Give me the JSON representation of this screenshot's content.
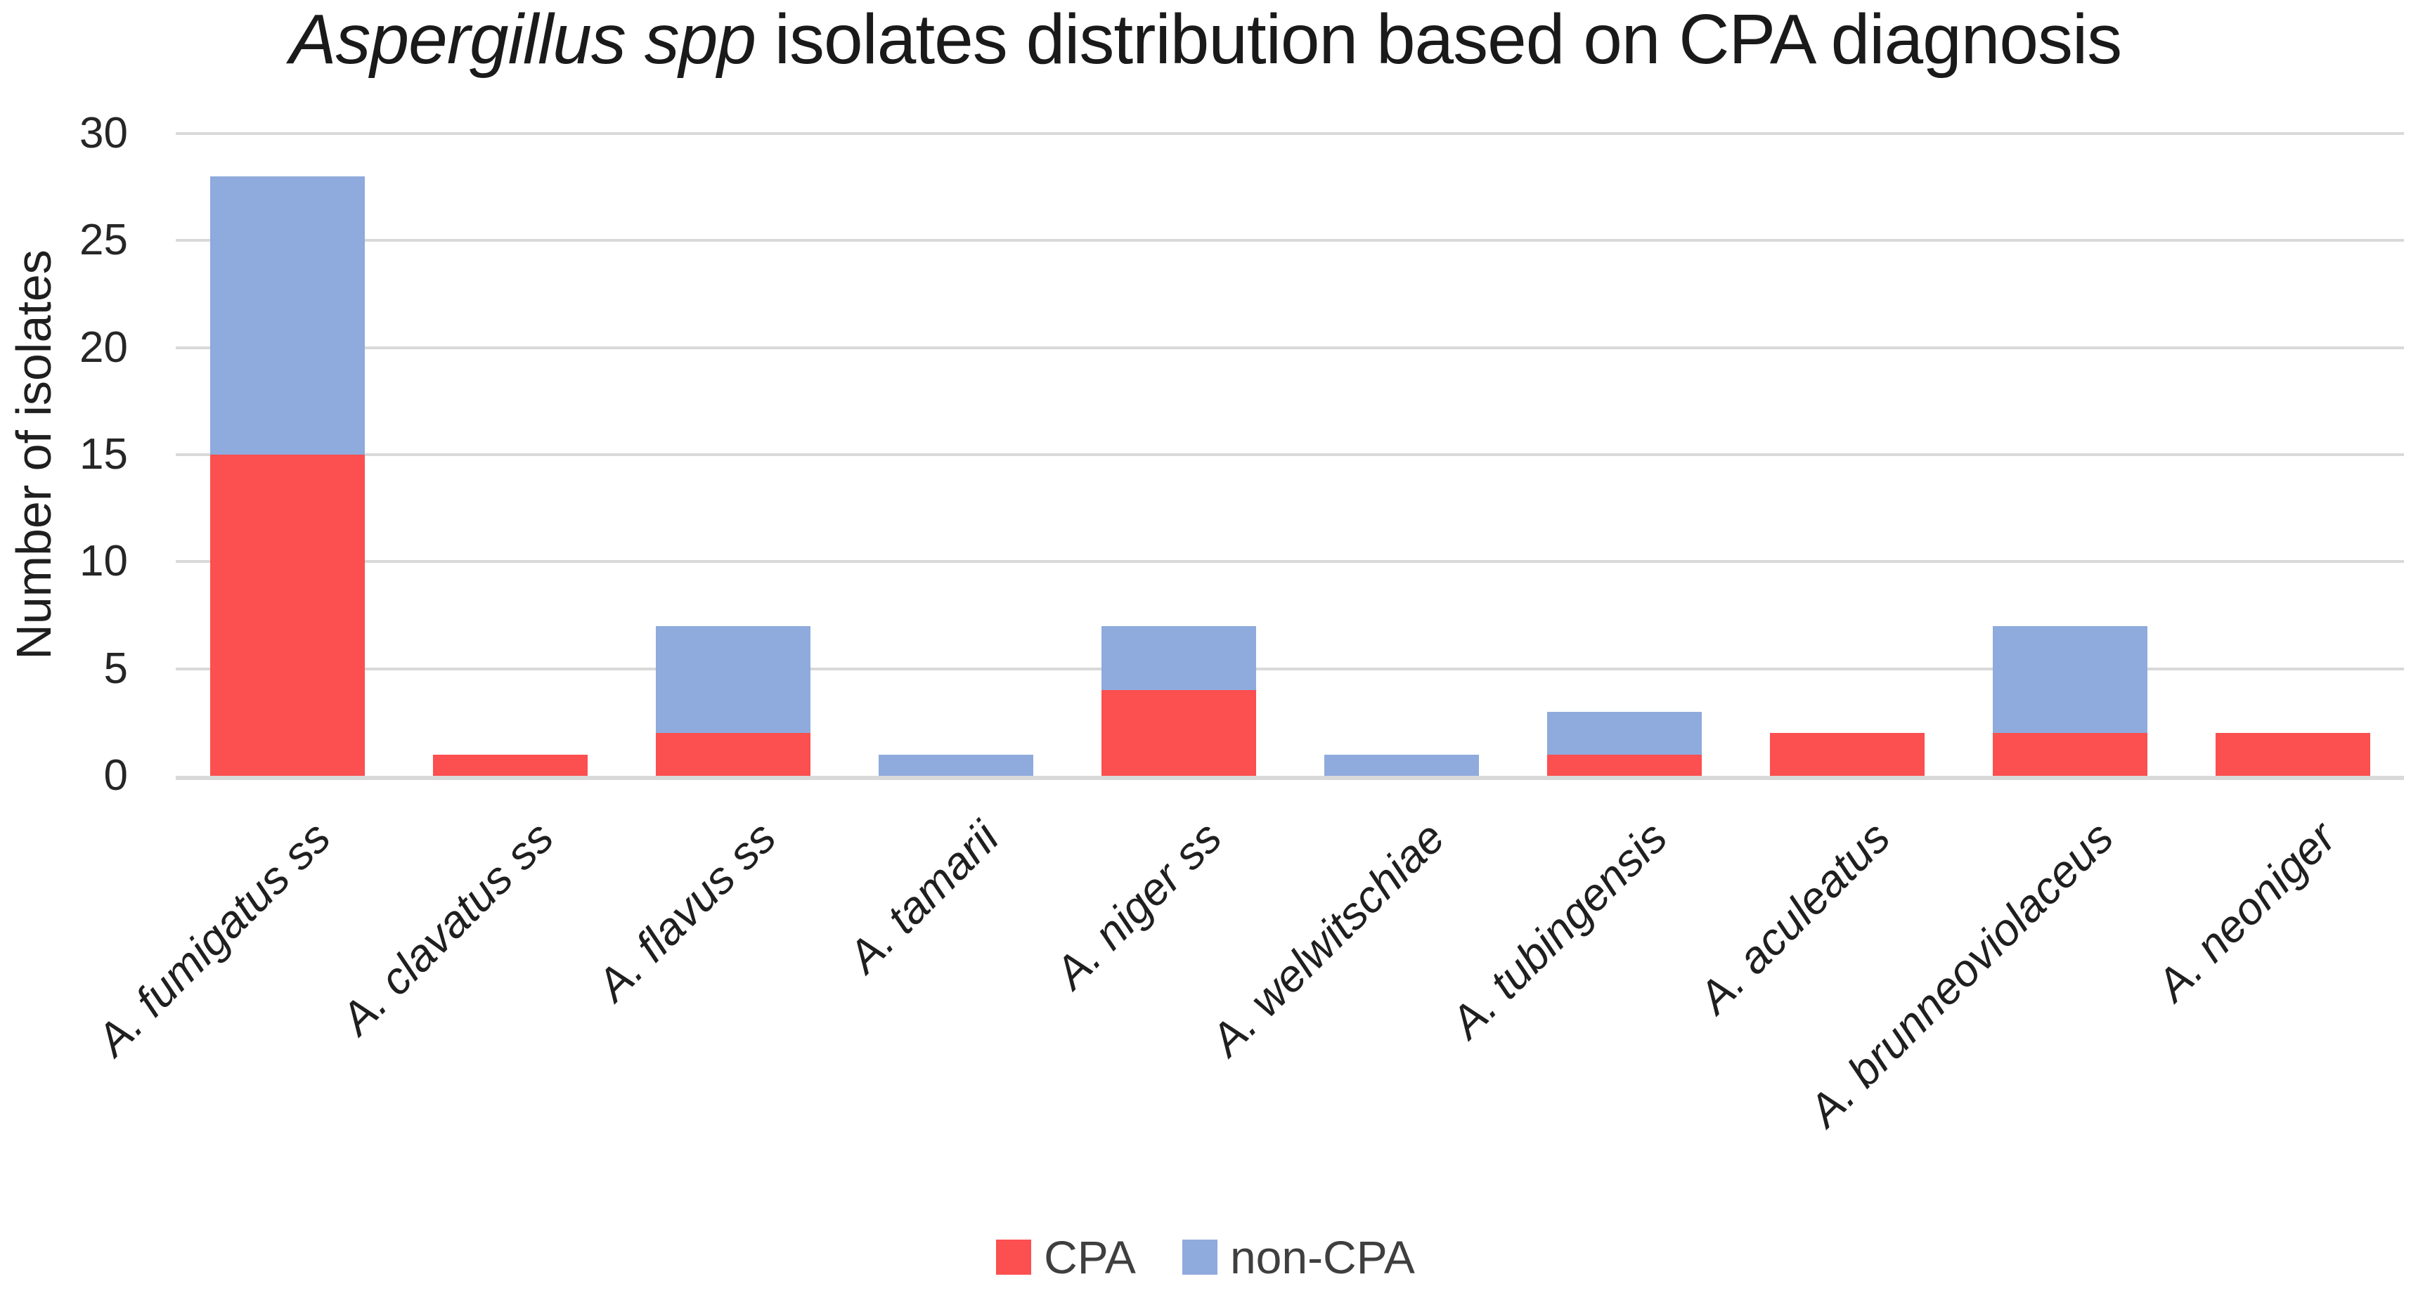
{
  "title": {
    "italic": "Aspergillus spp",
    "rest": " isolates distribution based on CPA diagnosis"
  },
  "chart_data": {
    "type": "bar",
    "stacked": true,
    "title": "Aspergillus spp isolates distribution based on CPA diagnosis",
    "xlabel": "",
    "ylabel": "Number of isolates",
    "ylim": [
      0,
      30
    ],
    "yticks": [
      0,
      5,
      10,
      15,
      20,
      25,
      30
    ],
    "grid": "horizontal",
    "legend_position": "bottom-center",
    "categories": [
      "A. fumigatus ss",
      "A. clavatus ss",
      "A. flavus ss",
      "A. tamarii",
      "A. niger ss",
      "A. welwitschiae",
      "A. tubingensis",
      "A. aculeatus",
      "A. brunneoviolaceus",
      "A. neoniger"
    ],
    "series": [
      {
        "name": "CPA",
        "color": "#FC4F4F",
        "values": [
          15,
          1,
          2,
          0,
          4,
          0,
          1,
          2,
          2,
          2
        ]
      },
      {
        "name": "non-CPA",
        "color": "#8FAADC",
        "values": [
          13,
          0,
          5,
          1,
          3,
          1,
          2,
          0,
          5,
          0
        ]
      }
    ]
  },
  "colors": {
    "gridline": "#D9D9D9",
    "axis_line": "#D9D9D9",
    "tick_text": "#262626",
    "category_text": "#1F1F1F",
    "legend_text": "#3F3F3F",
    "title_text": "#1A1A1A",
    "background": "#FFFFFF"
  }
}
